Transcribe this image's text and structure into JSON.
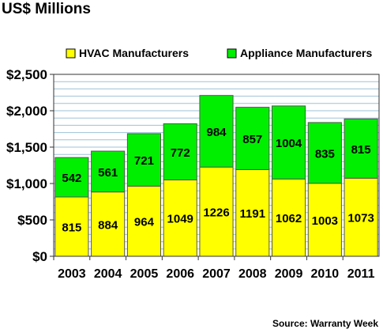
{
  "title": "US$ Millions",
  "source": "Source: Warranty Week",
  "colors": {
    "hvac": "#ffff00",
    "appliance": "#00ee00",
    "grid": "#9dc3d7",
    "border": "#555555"
  },
  "chart_data": {
    "type": "bar",
    "stacked": true,
    "categories": [
      "2003",
      "2004",
      "2005",
      "2006",
      "2007",
      "2008",
      "2009",
      "2010",
      "2011"
    ],
    "series": [
      {
        "name": "HVAC Manufacturers",
        "values": [
          815,
          884,
          964,
          1049,
          1226,
          1191,
          1062,
          1003,
          1073
        ]
      },
      {
        "name": "Appliance Manufacturers",
        "values": [
          542,
          561,
          721,
          772,
          984,
          857,
          1004,
          835,
          815
        ]
      }
    ],
    "ylim": [
      0,
      2500
    ],
    "yticks": [
      0,
      500,
      1000,
      1500,
      2000,
      2500
    ],
    "ytick_labels": [
      "$0",
      "$500",
      "$1,000",
      "$1,500",
      "$2,000",
      "$2,500"
    ],
    "grid": true,
    "legend": "top"
  }
}
